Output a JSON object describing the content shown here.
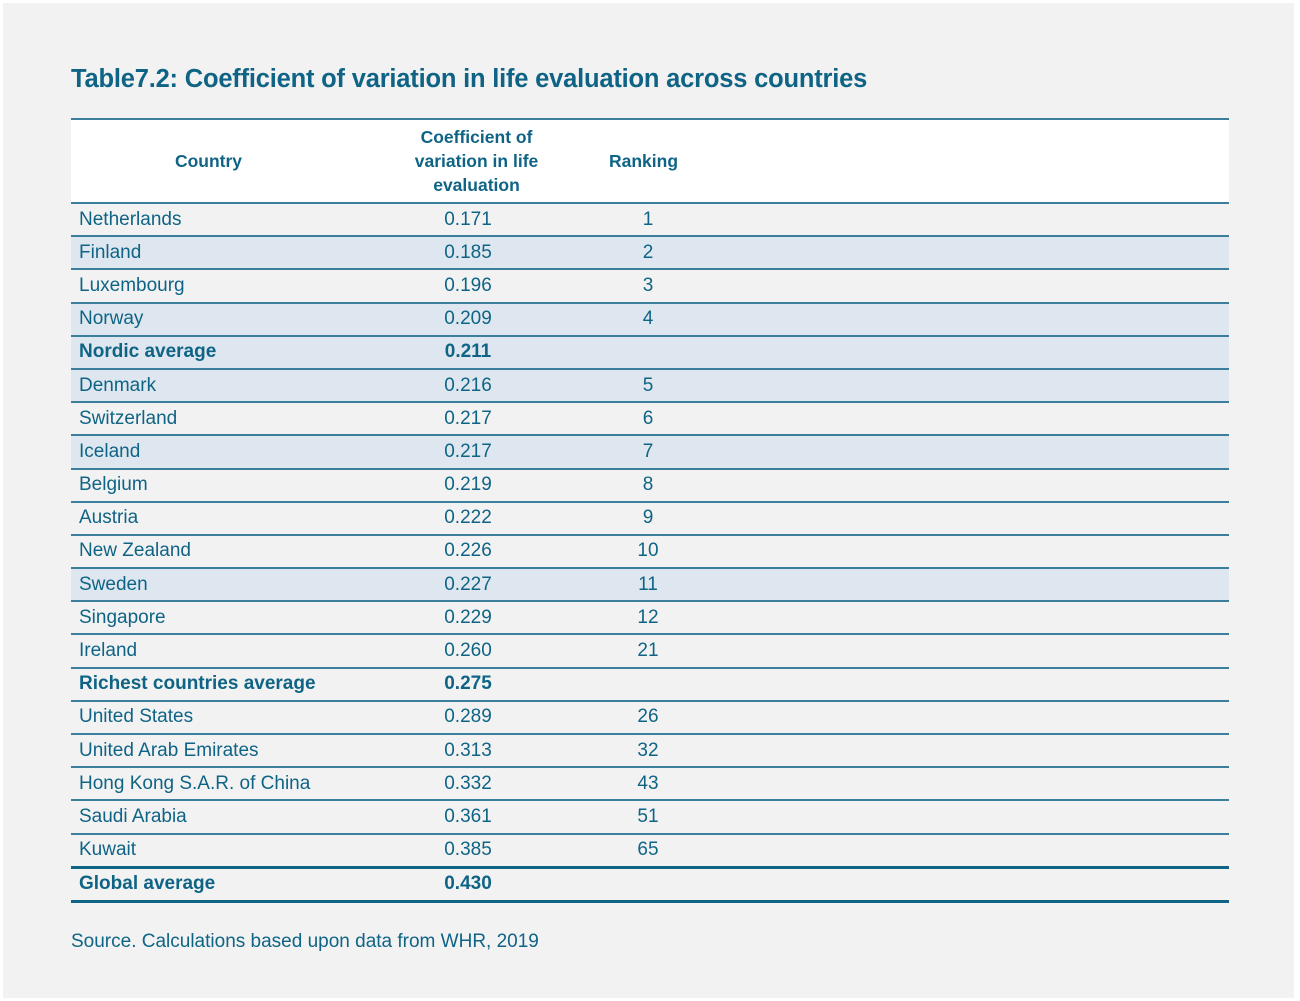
{
  "title": "Table7.2: Coefficient of variation in life evaluation across countries",
  "headers": {
    "country": "Country",
    "cv": "Coefficient of variation in life evaluation",
    "ranking": "Ranking"
  },
  "rows": [
    {
      "country": "Netherlands",
      "cv": "0.171",
      "rank": "1",
      "shaded": false,
      "bold": false
    },
    {
      "country": "Finland",
      "cv": "0.185",
      "rank": "2",
      "shaded": true,
      "bold": false
    },
    {
      "country": "Luxembourg",
      "cv": "0.196",
      "rank": "3",
      "shaded": false,
      "bold": false
    },
    {
      "country": "Norway",
      "cv": "0.209",
      "rank": "4",
      "shaded": true,
      "bold": false
    },
    {
      "country": "Nordic average",
      "cv": "0.211",
      "rank": "",
      "shaded": true,
      "bold": true
    },
    {
      "country": "Denmark",
      "cv": "0.216",
      "rank": "5",
      "shaded": true,
      "bold": false
    },
    {
      "country": "Switzerland",
      "cv": "0.217",
      "rank": "6",
      "shaded": false,
      "bold": false
    },
    {
      "country": "Iceland",
      "cv": "0.217",
      "rank": "7",
      "shaded": true,
      "bold": false
    },
    {
      "country": "Belgium",
      "cv": "0.219",
      "rank": "8",
      "shaded": false,
      "bold": false
    },
    {
      "country": "Austria",
      "cv": "0.222",
      "rank": "9",
      "shaded": false,
      "bold": false
    },
    {
      "country": "New Zealand",
      "cv": "0.226",
      "rank": "10",
      "shaded": false,
      "bold": false
    },
    {
      "country": "Sweden",
      "cv": "0.227",
      "rank": "11",
      "shaded": true,
      "bold": false
    },
    {
      "country": "Singapore",
      "cv": "0.229",
      "rank": "12",
      "shaded": false,
      "bold": false
    },
    {
      "country": "Ireland",
      "cv": "0.260",
      "rank": "21",
      "shaded": false,
      "bold": false
    },
    {
      "country": "Richest countries average",
      "cv": "0.275",
      "rank": "",
      "shaded": false,
      "bold": true
    },
    {
      "country": "United States",
      "cv": "0.289",
      "rank": "26",
      "shaded": false,
      "bold": false
    },
    {
      "country": "United Arab Emirates",
      "cv": "0.313",
      "rank": "32",
      "shaded": false,
      "bold": false
    },
    {
      "country": "Hong Kong S.A.R. of China",
      "cv": "0.332",
      "rank": "43",
      "shaded": false,
      "bold": false
    },
    {
      "country": "Saudi Arabia",
      "cv": "0.361",
      "rank": "51",
      "shaded": false,
      "bold": false
    },
    {
      "country": "Kuwait",
      "cv": "0.385",
      "rank": "65",
      "shaded": false,
      "bold": false
    }
  ],
  "footer_row": {
    "country": "Global average",
    "cv": "0.430",
    "rank": ""
  },
  "source": "Source. Calculations based upon data from WHR, 2019"
}
